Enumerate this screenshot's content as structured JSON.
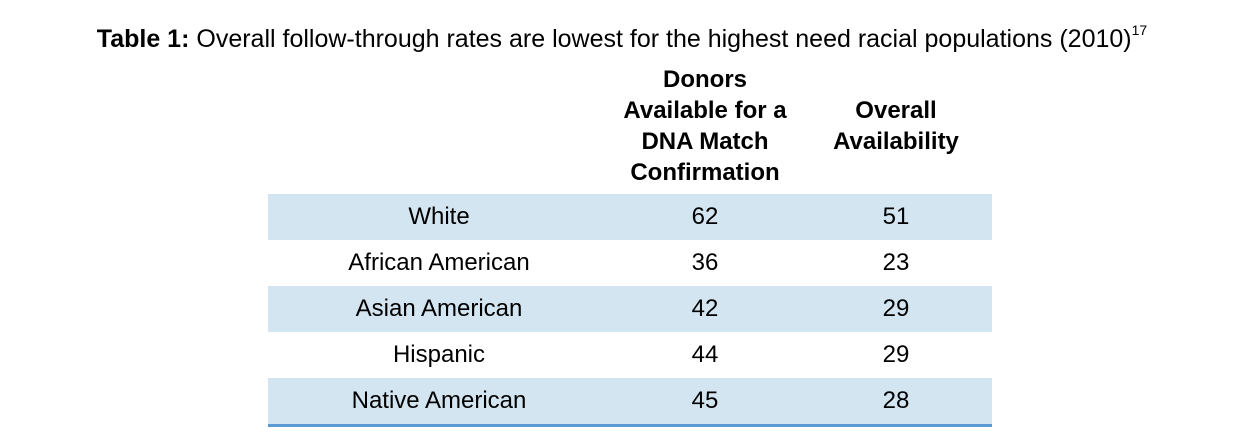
{
  "caption": {
    "label": "Table 1:",
    "text": " Overall follow-through rates are lowest for the highest need racial populations (2010)",
    "footnote": "17"
  },
  "table": {
    "headers": [
      "",
      "Donors Available for a DNA Match Confirmation",
      "Overall Availability"
    ],
    "rows": [
      [
        "White",
        "62",
        "51"
      ],
      [
        "African American",
        "36",
        "23"
      ],
      [
        "Asian American",
        "42",
        "29"
      ],
      [
        "Hispanic",
        "44",
        "29"
      ],
      [
        "Native American",
        "45",
        "28"
      ]
    ]
  },
  "colors": {
    "band": "#d3e5f0",
    "rule": "#5b9bd5"
  }
}
